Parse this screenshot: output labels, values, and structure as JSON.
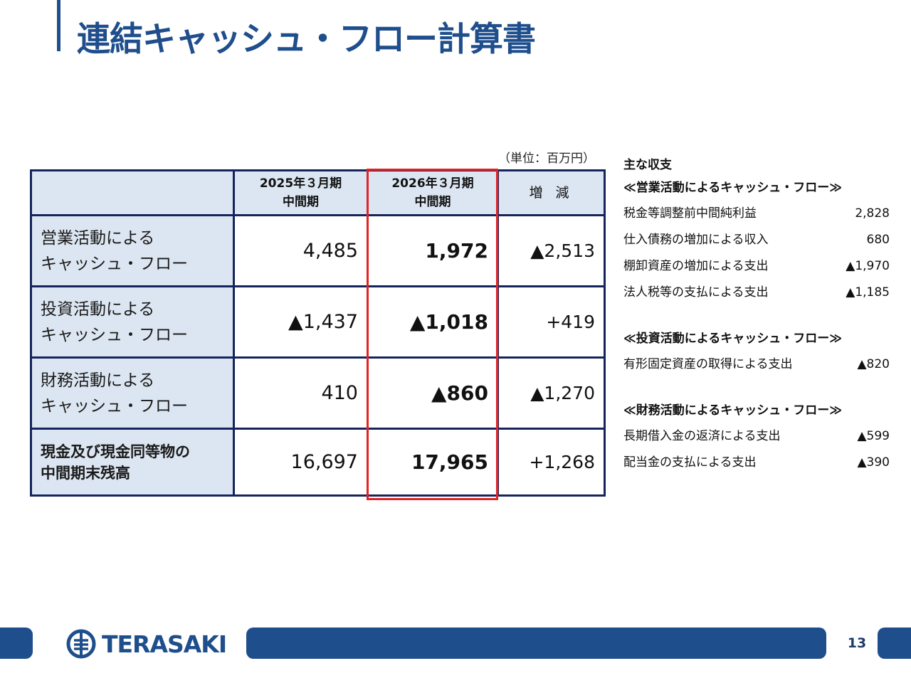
{
  "title": "連結キャッシュ・フロー計算書",
  "unit_label": "（単位：百万円）",
  "table": {
    "header": {
      "col1_line1": "2025年３月期",
      "col1_line2": "中間期",
      "col2_line1": "2026年３月期",
      "col2_line2": "中間期",
      "col3": "増 減"
    },
    "rows": [
      {
        "label_line1": "営業活動による",
        "label_line2": "キャッシュ・フロー",
        "prev": "4,485",
        "current": "1,972",
        "change": "▲2,513"
      },
      {
        "label_line1": "投資活動による",
        "label_line2": "キャッシュ・フロー",
        "prev": "▲1,437",
        "current": "▲1,018",
        "change": "+419"
      },
      {
        "label_line1": "財務活動による",
        "label_line2": "キャッシュ・フロー",
        "prev": "410",
        "current": "▲860",
        "change": "▲1,270"
      },
      {
        "label_line1": "現金及び現金同等物の",
        "label_line2": "中間期末残高",
        "prev": "16,697",
        "current": "17,965",
        "change": "+1,268"
      }
    ]
  },
  "side": {
    "title": "主な収支",
    "sections": [
      {
        "heading": "≪営業活動によるキャッシュ・フロー≫",
        "items": [
          {
            "label": "税金等調整前中間純利益",
            "value": "2,828"
          },
          {
            "label": "仕入債務の増加による収入",
            "value": "680"
          },
          {
            "label": "棚卸資産の増加による支出",
            "value": "▲1,970"
          },
          {
            "label": "法人税等の支払による支出",
            "value": "▲1,185"
          }
        ]
      },
      {
        "heading": "≪投資活動によるキャッシュ・フロー≫",
        "items": [
          {
            "label": "有形固定資産の取得による支出",
            "value": "▲820"
          }
        ]
      },
      {
        "heading": "≪財務活動によるキャッシュ・フロー≫",
        "items": [
          {
            "label": "長期借入金の返済による支出",
            "value": "▲599"
          },
          {
            "label": "配当金の支払による支出",
            "value": "▲390"
          }
        ]
      }
    ]
  },
  "footer": {
    "logo_text": "TERASAKI",
    "page_number": "13"
  },
  "colors": {
    "brand_blue": "#1f4e8c",
    "table_border": "#15245c",
    "header_fill": "#dce6f2",
    "highlight_red": "#e32222"
  }
}
